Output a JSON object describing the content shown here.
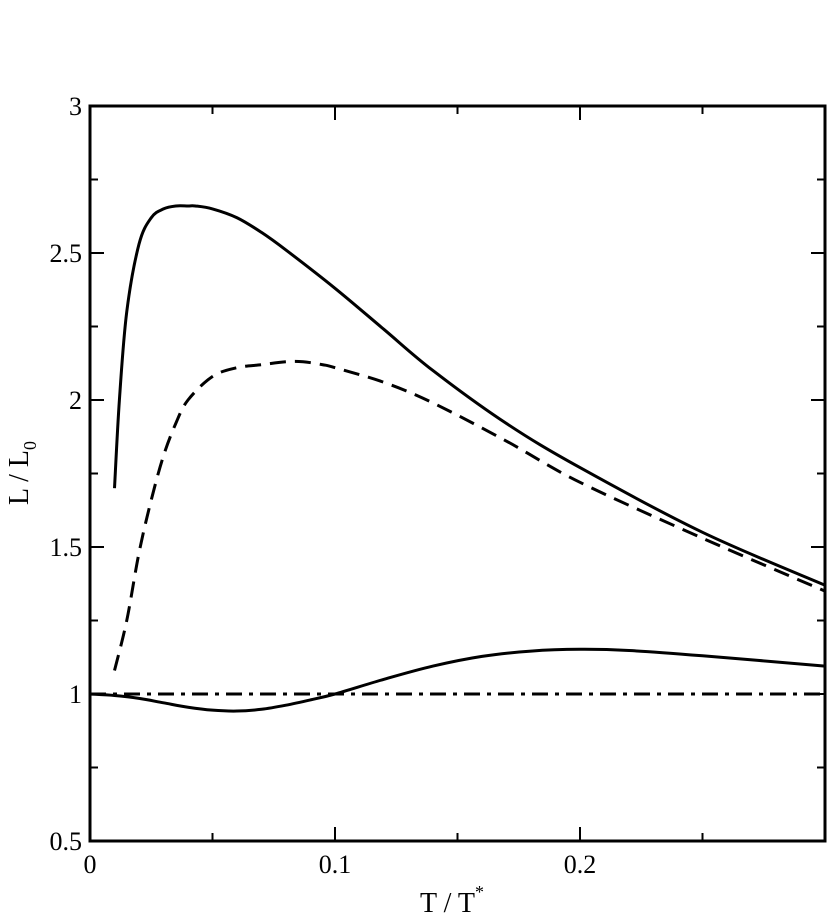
{
  "chart_data": {
    "type": "line",
    "title": "",
    "xlabel": {
      "main": "T / T",
      "sup": "*"
    },
    "ylabel": {
      "main": "L / L",
      "sub": "0"
    },
    "xlim": [
      0,
      0.3
    ],
    "ylim": [
      0.5,
      3
    ],
    "x_major_ticks": [
      0,
      0.1,
      0.2
    ],
    "x_tick_labels": [
      "0",
      "0.1",
      "0.2"
    ],
    "x_minor_ticks": [
      0.05,
      0.15,
      0.25
    ],
    "y_major_ticks": [
      0.5,
      1,
      1.5,
      2,
      2.5,
      3
    ],
    "y_tick_labels": [
      "0.5",
      "1",
      "1.5",
      "2",
      "2.5",
      "3"
    ],
    "y_minor_ticks": [
      0.75,
      1.25,
      1.75,
      2.25,
      2.75
    ],
    "grid": false,
    "series": [
      {
        "style": "solid",
        "x": [
          0.01,
          0.012,
          0.015,
          0.02,
          0.025,
          0.03,
          0.035,
          0.04,
          0.043,
          0.05,
          0.06,
          0.07,
          0.08,
          0.1,
          0.12,
          0.14,
          0.17,
          0.2,
          0.25,
          0.3
        ],
        "y": [
          1.7,
          2.0,
          2.3,
          2.53,
          2.62,
          2.65,
          2.66,
          2.66,
          2.66,
          2.65,
          2.62,
          2.57,
          2.51,
          2.38,
          2.24,
          2.1,
          1.92,
          1.77,
          1.55,
          1.37
        ]
      },
      {
        "style": "dashed",
        "x": [
          0.01,
          0.015,
          0.02,
          0.025,
          0.03,
          0.035,
          0.04,
          0.05,
          0.06,
          0.07,
          0.08,
          0.087,
          0.095,
          0.1,
          0.12,
          0.14,
          0.17,
          0.2,
          0.25,
          0.3
        ],
        "y": [
          1.08,
          1.25,
          1.48,
          1.66,
          1.81,
          1.92,
          2.0,
          2.08,
          2.11,
          2.12,
          2.13,
          2.13,
          2.12,
          2.11,
          2.06,
          1.99,
          1.86,
          1.72,
          1.53,
          1.35
        ]
      },
      {
        "style": "solid",
        "x": [
          0,
          0.01,
          0.02,
          0.03,
          0.04,
          0.05,
          0.06,
          0.07,
          0.08,
          0.09,
          0.1,
          0.12,
          0.14,
          0.16,
          0.18,
          0.2,
          0.22,
          0.25,
          0.3
        ],
        "y": [
          1.0,
          0.995,
          0.985,
          0.97,
          0.955,
          0.945,
          0.942,
          0.948,
          0.962,
          0.98,
          1.0,
          1.05,
          1.095,
          1.128,
          1.146,
          1.152,
          1.148,
          1.13,
          1.095
        ]
      },
      {
        "style": "dashdot",
        "x": [
          0,
          0.3
        ],
        "y": [
          1.0,
          1.0
        ]
      }
    ]
  }
}
